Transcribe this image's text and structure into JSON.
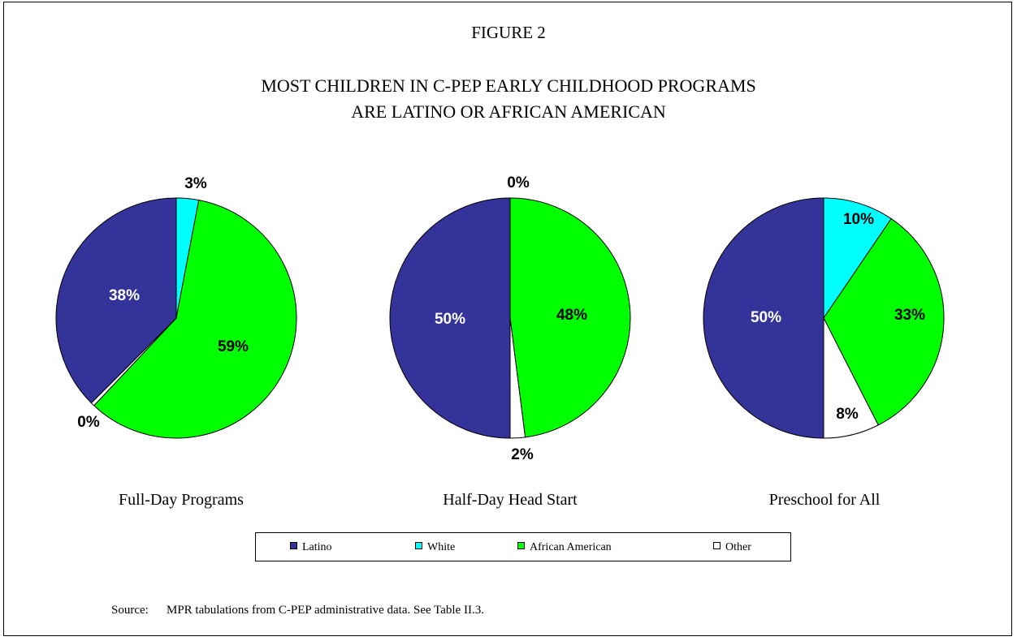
{
  "figure": {
    "label": "FIGURE 2",
    "title_line1": "MOST CHILDREN IN C-PEP EARLY CHILDHOOD PROGRAMS",
    "title_line2": "ARE LATINO OR AFRICAN AMERICAN"
  },
  "colors": {
    "Latino": "#333399",
    "White": "#00ffff",
    "African American": "#00ff00",
    "Other": "#ffffff"
  },
  "chart_data": [
    {
      "type": "pie",
      "title": "Full-Day Programs",
      "slices": [
        {
          "label": "White",
          "value": 3,
          "display": "3%"
        },
        {
          "label": "African American",
          "value": 59,
          "display": "59%"
        },
        {
          "label": "Other",
          "value": 0.5,
          "display": "0%"
        },
        {
          "label": "Latino",
          "value": 37.5,
          "display": "38%"
        }
      ]
    },
    {
      "type": "pie",
      "title": "Half-Day Head Start",
      "slices": [
        {
          "label": "White",
          "value": 0,
          "display": "0%"
        },
        {
          "label": "African American",
          "value": 48,
          "display": "48%"
        },
        {
          "label": "Other",
          "value": 2,
          "display": "2%"
        },
        {
          "label": "Latino",
          "value": 50,
          "display": "50%"
        }
      ]
    },
    {
      "type": "pie",
      "title": "Preschool for All",
      "slices": [
        {
          "label": "White",
          "value": 9.5,
          "display": "10%"
        },
        {
          "label": "African American",
          "value": 33,
          "display": "33%"
        },
        {
          "label": "Other",
          "value": 7.5,
          "display": "8%"
        },
        {
          "label": "Latino",
          "value": 50,
          "display": "50%"
        }
      ]
    }
  ],
  "legend": {
    "items": [
      {
        "label": "Latino"
      },
      {
        "label": "White"
      },
      {
        "label": "African American"
      },
      {
        "label": "Other"
      }
    ]
  },
  "source": {
    "label": "Source:",
    "text": "MPR tabulations from C-PEP administrative data.  See Table II.3."
  }
}
